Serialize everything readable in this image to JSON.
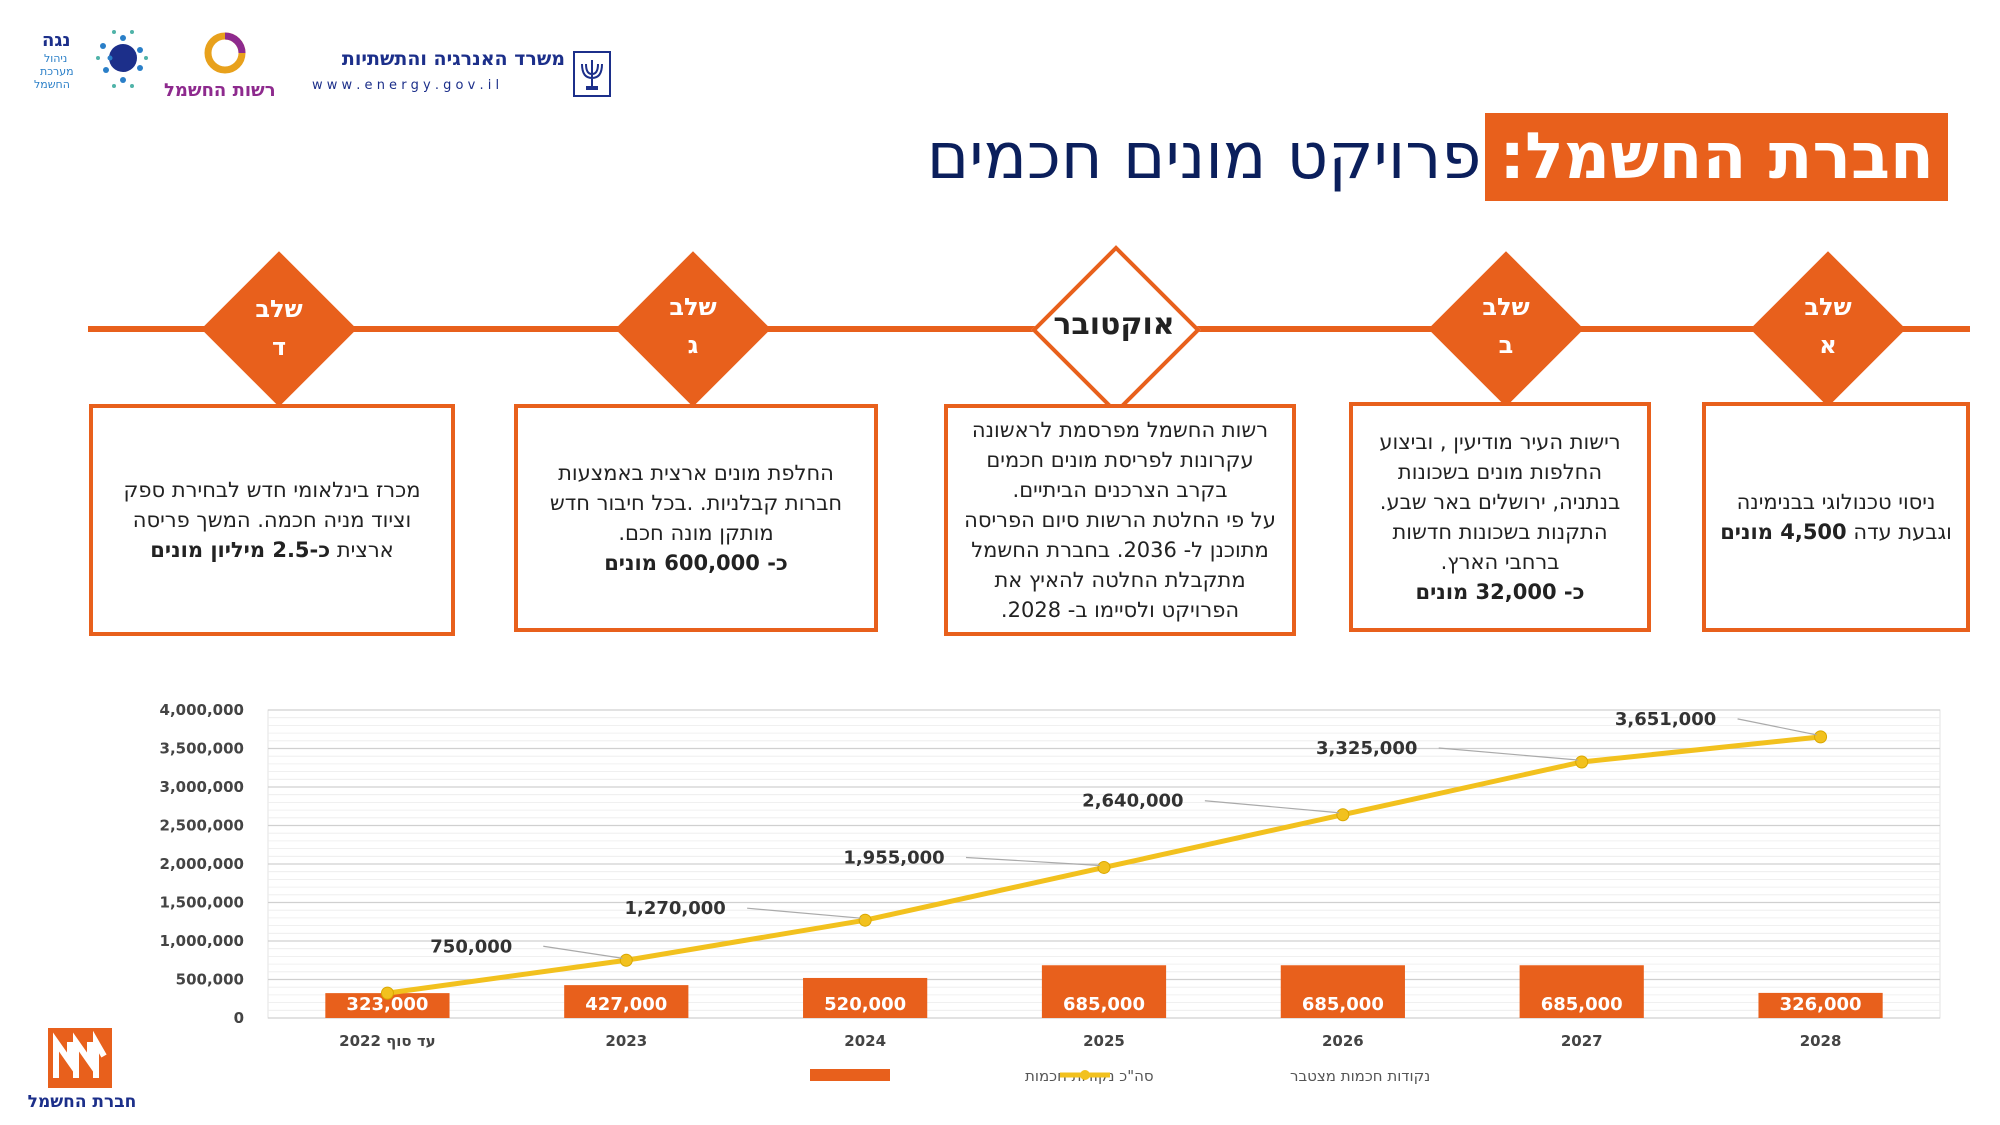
{
  "logos": {
    "ministry_name": "משרד האנרגיה והתשתיות",
    "ministry_url": "w w w . e n e r g y . g o v . i l",
    "authority_name": "רשות החשמל",
    "noga_name": "נגה",
    "noga_sub1": "ניהול",
    "noga_sub2": "מערכת",
    "noga_sub3": "החשמל",
    "iec_name": "חברת החשמל"
  },
  "title": {
    "brand": "חברת החשמל:",
    "rest": "פרויקט מונים חכמים"
  },
  "timeline": [
    {
      "label_line1": "שלב",
      "label_line2": "א",
      "text": [
        "ניסוי טכנולוגי בבנימינה",
        "וגבעת עדה"
      ],
      "highlight": "4,500 מונים"
    },
    {
      "label_line1": "שלב",
      "label_line2": "ב",
      "text": [
        "רישות העיר מודיעין , וביצוע",
        "החלפות מונים בשכונות",
        "בנתניה, ירושלים  באר שבע.",
        "התקנות בשכונות חדשות",
        "ברחבי הארץ."
      ],
      "highlight": "כ- 32,000 מונים"
    },
    {
      "label_line1": "אוקטובר",
      "label_line2": "",
      "text": [
        "רשות החשמל מפרסמת לראשונה",
        "עקרונות לפריסת מונים חכמים",
        "בקרב הצרכנים הביתיים.",
        "על פי החלטת הרשות סיום הפריסה",
        "מתוכנן ל- 2036. בחברת החשמל",
        "מתקבלת החלטה להאיץ את",
        "הפרויקט ולסיימו ב- 2028."
      ],
      "highlight": ""
    },
    {
      "label_line1": "שלב",
      "label_line2": "ג",
      "text": [
        "החלפת מונים ארצית באמצעות",
        "חברות קבלניות. .בכל חיבור חדש",
        "מותקן מונה חכם."
      ],
      "highlight": "כ- 600,000 מונים"
    },
    {
      "label_line1": "שלב",
      "label_line2": "ד",
      "text": [
        "מכרז בינלאומי חדש לבחירת  ספק",
        "וציוד מניה חכמה. המשך פריסה",
        "ארצית"
      ],
      "highlight": "כ-2.5  מיליון מונים"
    }
  ],
  "chart_data": {
    "type": "bar",
    "categories": [
      "עד סוף 2022",
      "2023",
      "2024",
      "2025",
      "2026",
      "2027",
      "2028"
    ],
    "series": [
      {
        "name": "סה\"כ נקודות חכמות",
        "type": "bar",
        "color": "#E8601C",
        "values": [
          323000,
          427000,
          520000,
          685000,
          685000,
          685000,
          326000
        ],
        "labels": [
          "323,000",
          "427,000",
          "520,000",
          "685,000",
          "685,000",
          "685,000",
          "326,000"
        ]
      },
      {
        "name": "נקודות חכמות מצטבר",
        "type": "line",
        "color": "#F2C11E",
        "values": [
          323000,
          750000,
          1270000,
          1955000,
          2640000,
          3325000,
          3651000
        ],
        "labels": [
          "",
          "750,000",
          "1,270,000",
          "1,955,000",
          "2,640,000",
          "3,325,000",
          "3,651,000"
        ]
      }
    ],
    "yticks": [
      "0",
      "500,000",
      "1,000,000",
      "1,500,000",
      "2,000,000",
      "2,500,000",
      "3,000,000",
      "3,500,000",
      "4,000,000"
    ],
    "ylim": [
      0,
      4000000
    ],
    "legend_position": "bottom"
  },
  "colors": {
    "accent": "#E8601C",
    "line": "#F2C11E",
    "title": "#0b1f5c"
  }
}
